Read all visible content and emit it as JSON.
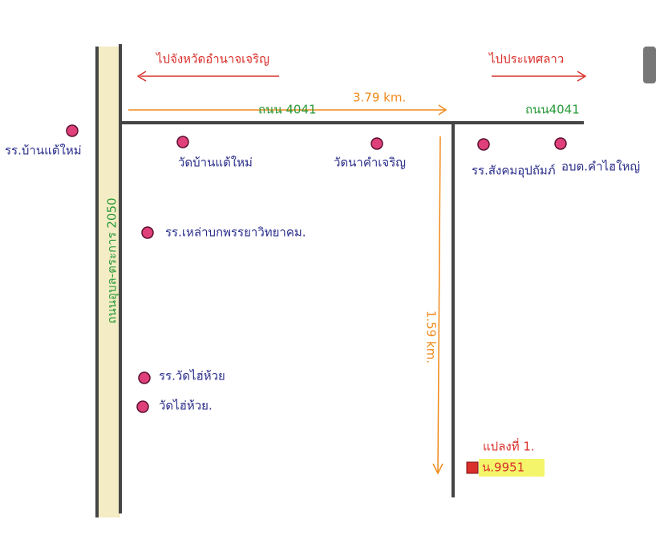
{
  "directions": {
    "left": "ไปจังหวัดอำนาจเจริญ",
    "right": "ไปประเทศลาว"
  },
  "roads": {
    "main_left": "ถนน 4041",
    "main_right": "ถนน4041",
    "vertical": "ถนนอุบล-ตระการ 2050"
  },
  "distances": {
    "horizontal": "3.79 km.",
    "vertical": "1.59 km."
  },
  "places": {
    "school_ban_tae": "รร.บ้านแต้ใหม่",
    "wat_ban_tae": "วัดบ้านแต้ใหม่",
    "wat_na_kham": "วัดนาคำเจริญ",
    "school_sangkhom": "รร.สังคมอุปถัมภ์",
    "sao_kham_hai": "อบต.คำไฮใหญ่",
    "school_lao_bok": "รร.เหล่าบกพรรยาวิทยาคม.",
    "school_wat_hai": "รร.วัดไฮ่ห้วย",
    "wat_hai": "วัดไฮ่ห้วย."
  },
  "plot": {
    "name": "แปลงที่ 1.",
    "code": "น.9951"
  }
}
